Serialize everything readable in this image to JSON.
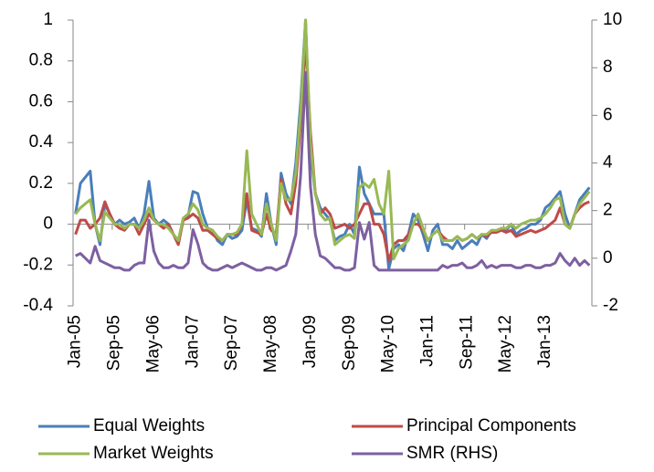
{
  "chart_data": {
    "type": "line",
    "categories": [
      "Jan-05",
      null,
      null,
      null,
      null,
      null,
      null,
      null,
      "Sep-05",
      null,
      null,
      null,
      null,
      null,
      null,
      null,
      "May-06",
      null,
      null,
      null,
      null,
      null,
      null,
      null,
      "Jan-07",
      null,
      null,
      null,
      null,
      null,
      null,
      null,
      "Sep-07",
      null,
      null,
      null,
      null,
      null,
      null,
      null,
      "May-08",
      null,
      null,
      null,
      null,
      null,
      null,
      null,
      "Jan-09",
      null,
      null,
      null,
      null,
      null,
      null,
      null,
      "Sep-09",
      null,
      null,
      null,
      null,
      null,
      null,
      null,
      "May-10",
      null,
      null,
      null,
      null,
      null,
      null,
      null,
      "Jan-11",
      null,
      null,
      null,
      null,
      null,
      null,
      null,
      "Sep-11",
      null,
      null,
      null,
      null,
      null,
      null,
      null,
      "May-12",
      null,
      null,
      null,
      null,
      null,
      null,
      null,
      "Jan-13",
      null,
      null,
      null,
      null,
      null,
      null,
      null,
      null,
      null
    ],
    "series": [
      {
        "name": "Equal Weights",
        "color": "#4a7ebb",
        "values": [
          0.05,
          0.2,
          0.23,
          0.26,
          0.0,
          -0.1,
          0.1,
          0.05,
          0.0,
          0.02,
          0.0,
          0.01,
          0.03,
          -0.02,
          0.05,
          0.21,
          0.03,
          0.0,
          0.02,
          0.0,
          -0.05,
          -0.08,
          0.02,
          0.04,
          0.16,
          0.15,
          0.05,
          -0.02,
          -0.03,
          -0.08,
          -0.1,
          -0.05,
          -0.07,
          -0.06,
          -0.03,
          0.12,
          -0.02,
          -0.03,
          -0.06,
          0.15,
          0.0,
          -0.1,
          0.25,
          0.15,
          0.1,
          0.3,
          0.6,
          1.0,
          0.35,
          0.15,
          0.08,
          0.05,
          0.02,
          -0.08,
          -0.06,
          -0.05,
          0.0,
          -0.05,
          0.28,
          0.15,
          0.1,
          0.05,
          0.05,
          0.05,
          -0.22,
          -0.12,
          -0.1,
          -0.13,
          -0.05,
          0.05,
          0.02,
          -0.05,
          -0.13,
          -0.03,
          0.0,
          -0.1,
          -0.1,
          -0.12,
          -0.08,
          -0.12,
          -0.1,
          -0.08,
          -0.1,
          -0.05,
          -0.07,
          -0.03,
          -0.04,
          -0.02,
          -0.03,
          0.0,
          -0.05,
          -0.03,
          -0.02,
          0.0,
          0.0,
          0.02,
          0.08,
          0.1,
          0.13,
          0.16,
          0.05,
          -0.02,
          0.05,
          0.12,
          0.15,
          0.18
        ]
      },
      {
        "name": "Principal Components",
        "color": "#be4b48",
        "values": [
          -0.05,
          0.02,
          0.02,
          -0.02,
          0.0,
          0.03,
          0.11,
          0.05,
          0.0,
          -0.02,
          -0.03,
          0.0,
          0.0,
          -0.05,
          0.0,
          0.05,
          0.02,
          0.0,
          -0.02,
          0.0,
          -0.05,
          -0.1,
          0.02,
          0.03,
          0.05,
          0.03,
          -0.03,
          -0.03,
          -0.05,
          -0.07,
          -0.08,
          -0.05,
          -0.05,
          -0.05,
          0.0,
          0.15,
          -0.03,
          -0.04,
          -0.05,
          0.05,
          -0.03,
          -0.05,
          0.22,
          0.1,
          0.05,
          0.2,
          0.5,
          0.9,
          0.45,
          0.15,
          0.05,
          0.08,
          0.05,
          -0.02,
          -0.01,
          0.0,
          -0.02,
          0.0,
          0.05,
          0.1,
          0.1,
          0.0,
          0.0,
          -0.05,
          -0.18,
          -0.1,
          -0.08,
          -0.08,
          -0.05,
          0.0,
          0.0,
          -0.03,
          -0.08,
          -0.05,
          -0.03,
          -0.06,
          -0.08,
          -0.08,
          -0.06,
          -0.08,
          -0.07,
          -0.05,
          -0.07,
          -0.05,
          -0.06,
          -0.04,
          -0.04,
          -0.03,
          -0.04,
          -0.03,
          -0.06,
          -0.05,
          -0.04,
          -0.03,
          -0.04,
          -0.03,
          -0.02,
          0.0,
          0.02,
          0.08,
          0.0,
          -0.02,
          0.05,
          0.08,
          0.1,
          0.11
        ]
      },
      {
        "name": "Market Weights",
        "color": "#98b954",
        "values": [
          0.05,
          0.08,
          0.1,
          0.12,
          0.0,
          -0.08,
          0.06,
          0.03,
          0.0,
          0.0,
          -0.02,
          0.0,
          0.0,
          -0.02,
          0.02,
          0.08,
          0.02,
          0.0,
          0.0,
          -0.02,
          -0.05,
          -0.08,
          0.03,
          0.05,
          0.1,
          0.07,
          0.0,
          -0.02,
          -0.03,
          -0.06,
          -0.08,
          -0.05,
          -0.05,
          -0.04,
          0.0,
          0.36,
          0.05,
          0.0,
          -0.05,
          0.1,
          0.0,
          -0.08,
          0.2,
          0.12,
          0.12,
          0.25,
          0.55,
          1.0,
          0.4,
          0.15,
          0.05,
          0.02,
          0.03,
          -0.1,
          -0.08,
          -0.06,
          -0.05,
          -0.07,
          0.18,
          0.2,
          0.18,
          0.22,
          0.1,
          0.05,
          0.26,
          -0.17,
          -0.12,
          -0.1,
          -0.08,
          0.0,
          0.05,
          -0.02,
          -0.08,
          -0.05,
          -0.03,
          -0.08,
          -0.08,
          -0.08,
          -0.06,
          -0.08,
          -0.07,
          -0.05,
          -0.07,
          -0.05,
          -0.05,
          -0.03,
          -0.03,
          -0.02,
          -0.02,
          0.0,
          -0.02,
          0.0,
          0.01,
          0.02,
          0.02,
          0.03,
          0.05,
          0.08,
          0.12,
          0.13,
          0.0,
          -0.02,
          0.05,
          0.1,
          0.13,
          0.16
        ]
      },
      {
        "name": "SMR (RHS)",
        "color": "#7d60a0",
        "axis": "y2",
        "values": [
          0.1,
          0.2,
          0.0,
          -0.2,
          0.5,
          -0.1,
          -0.2,
          -0.3,
          -0.4,
          -0.4,
          -0.5,
          -0.5,
          -0.3,
          -0.2,
          -0.2,
          1.6,
          0.3,
          -0.2,
          -0.4,
          -0.4,
          -0.3,
          -0.4,
          -0.4,
          -0.2,
          1.2,
          0.6,
          -0.2,
          -0.4,
          -0.5,
          -0.5,
          -0.4,
          -0.3,
          -0.4,
          -0.3,
          -0.2,
          -0.3,
          -0.4,
          -0.5,
          -0.5,
          -0.4,
          -0.4,
          -0.5,
          -0.4,
          -0.3,
          0.3,
          1.0,
          3.5,
          7.8,
          3.0,
          1.0,
          0.1,
          0.0,
          -0.2,
          -0.4,
          -0.4,
          -0.5,
          -0.5,
          -0.4,
          1.5,
          0.8,
          1.5,
          -0.3,
          -0.5,
          -0.5,
          -0.5,
          -0.5,
          -0.5,
          -0.5,
          -0.5,
          -0.5,
          -0.5,
          -0.5,
          -0.5,
          -0.5,
          -0.5,
          -0.3,
          -0.4,
          -0.3,
          -0.3,
          -0.2,
          -0.4,
          -0.4,
          -0.3,
          -0.1,
          -0.4,
          -0.3,
          -0.4,
          -0.3,
          -0.3,
          -0.3,
          -0.4,
          -0.4,
          -0.3,
          -0.3,
          -0.4,
          -0.4,
          -0.3,
          -0.3,
          -0.2,
          0.2,
          -0.1,
          -0.3,
          0.0,
          -0.3,
          -0.1,
          -0.3
        ]
      }
    ],
    "ylim": [
      -0.4,
      1
    ],
    "yticks": [
      -0.4,
      -0.2,
      0,
      0.2,
      0.4,
      0.6,
      0.8,
      1
    ],
    "y2lim": [
      -2,
      10
    ],
    "y2ticks": [
      -2,
      0,
      2,
      4,
      6,
      8,
      10
    ],
    "grid": false,
    "legend": "bottom"
  }
}
